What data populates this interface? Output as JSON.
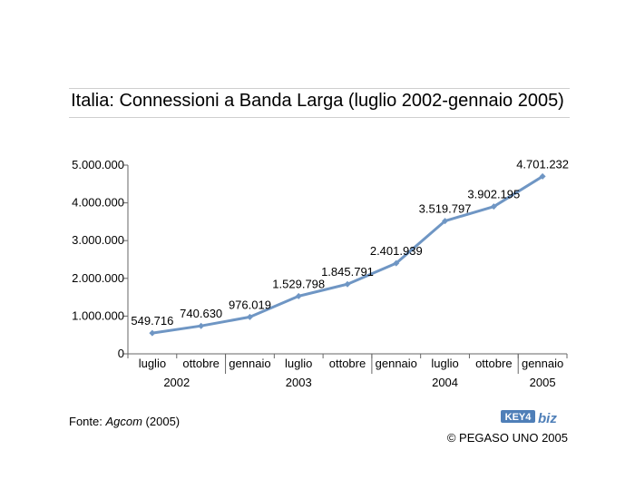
{
  "title": "Italia: Connessioni a Banda Larga (luglio 2002-gennaio 2005)",
  "source": {
    "prefix": "Fonte: ",
    "name": "Agcom",
    "suffix": " (2005)"
  },
  "logo": {
    "text_key": "KEY4",
    "text_biz": "biz"
  },
  "copyright": "© PEGASO UNO 2005",
  "colors": {
    "series": "#6f96c4",
    "logo_blue": "#4f7fb8",
    "axis": "#666666"
  },
  "chart_data": {
    "type": "line",
    "title": "Italia: Connessioni a Banda Larga (luglio 2002-gennaio 2005)",
    "categories": [
      "luglio",
      "ottobre",
      "gennaio",
      "luglio",
      "ottobre",
      "gennaio",
      "luglio",
      "ottobre",
      "gennaio"
    ],
    "years": [
      {
        "label": "2002",
        "from": 0,
        "to": 1
      },
      {
        "label": "2003",
        "from": 2,
        "to": 4
      },
      {
        "label": "2004",
        "from": 5,
        "to": 7
      },
      {
        "label": "2005",
        "from": 8,
        "to": 8
      }
    ],
    "values": [
      549716,
      740630,
      976019,
      1529798,
      1845791,
      2401939,
      3519797,
      3902195,
      4701232
    ],
    "value_labels": [
      "549.716",
      "740.630",
      "976.019",
      "1.529.798",
      "1.845.791",
      "2.401.939",
      "3.519.797",
      "3.902.195",
      "4.701.232"
    ],
    "yticks": [
      0,
      1000000,
      2000000,
      3000000,
      4000000,
      5000000
    ],
    "ytick_labels": [
      "0",
      "1.000.000",
      "2.000.000",
      "3.000.000",
      "4.000.000",
      "5.000.000"
    ],
    "ylim": [
      0,
      5000000
    ],
    "xlabel": "",
    "ylabel": "",
    "grid": false,
    "legend": false
  }
}
